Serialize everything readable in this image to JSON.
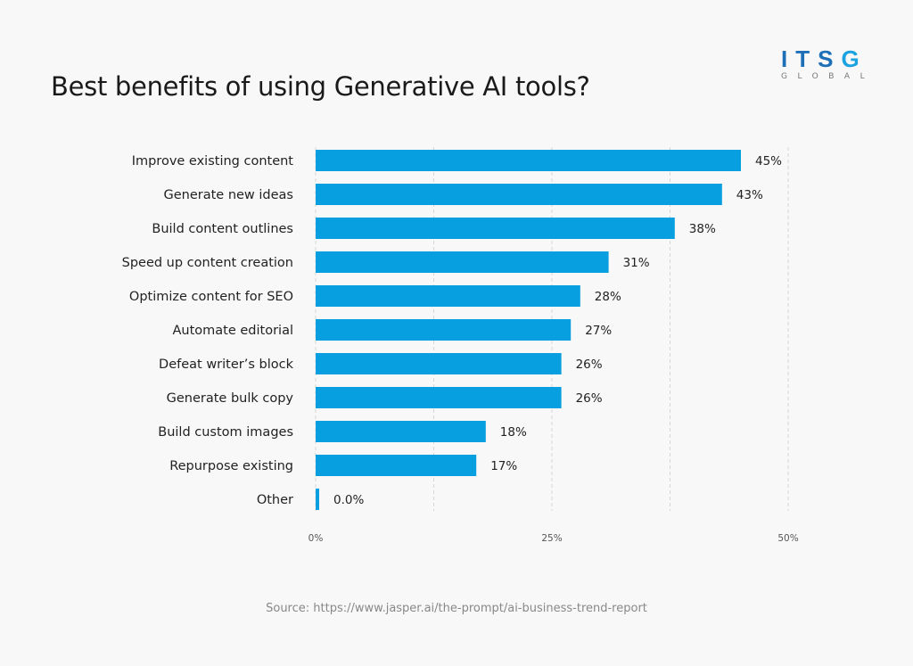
{
  "header": {
    "title": "Best benefits of using Generative AI tools?"
  },
  "logo": {
    "main_dark": "ITS",
    "main_light": "G",
    "sub": "GLOBAL"
  },
  "footer": {
    "source": "Source: https://www.jasper.ai/the-prompt/ai-business-trend-report"
  },
  "colors": {
    "bar": "#079fe0",
    "grid": "#d6d6d6",
    "text": "#222222"
  },
  "chart_data": {
    "type": "bar",
    "orientation": "horizontal",
    "title": "Best benefits of using Generative AI tools?",
    "xlabel": "",
    "ylabel": "",
    "categories": [
      "Improve existing content",
      "Generate new ideas",
      "Build content outlines",
      "Speed up content creation",
      "Optimize content for SEO",
      "Automate editorial",
      "Defeat writer’s block",
      "Generate bulk copy",
      "Build custom images",
      "Repurpose existing",
      "Other"
    ],
    "values": [
      45,
      43,
      38,
      31,
      28,
      27,
      26,
      26,
      18,
      17,
      0.0
    ],
    "labels": [
      "45%",
      "43%",
      "38%",
      "31%",
      "28%",
      "27%",
      "26%",
      "26%",
      "18%",
      "17%",
      "0.0%"
    ],
    "xlim": [
      0,
      50
    ],
    "xticks": [
      0,
      25,
      50
    ],
    "xtick_labels": [
      "0%",
      "25%",
      "50%"
    ],
    "gridlines": [
      0,
      12.5,
      25,
      37.5,
      50
    ],
    "grid": true,
    "legend": "none"
  }
}
